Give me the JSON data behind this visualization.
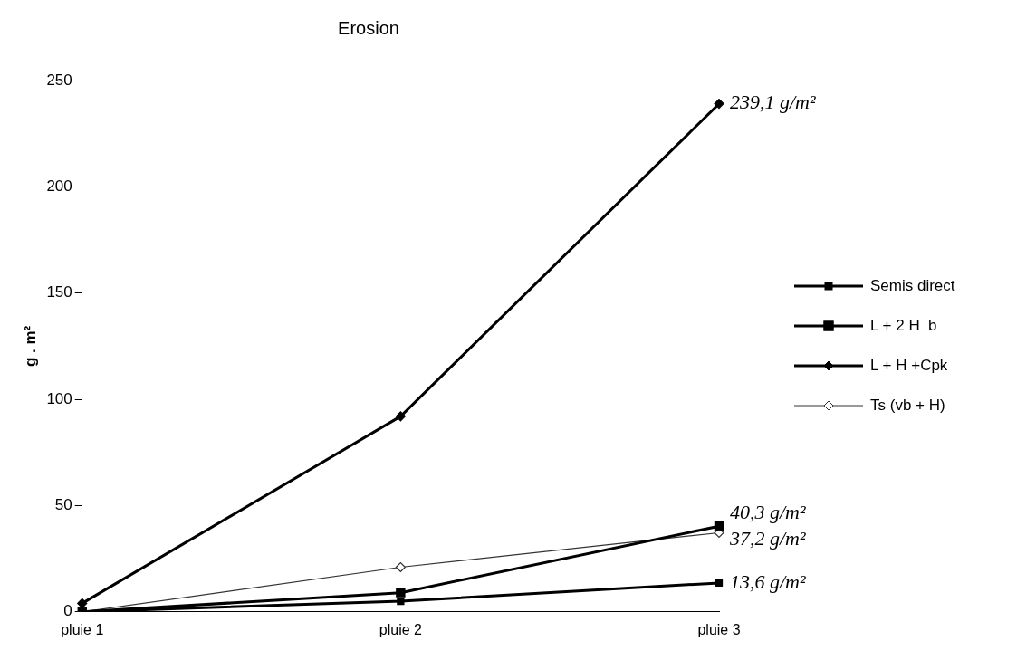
{
  "chart_data": {
    "type": "line",
    "title": "Erosion",
    "ylabel": "g . m²",
    "categories": [
      "pluie 1",
      "pluie 2",
      "pluie 3"
    ],
    "series": [
      {
        "name": "Semis direct",
        "color": "#000000",
        "marker": "square",
        "values": [
          0,
          5,
          13.6
        ]
      },
      {
        "name": "L + 2 H  b",
        "color": "#000000",
        "marker": "square",
        "values": [
          0,
          9,
          40.3
        ]
      },
      {
        "name": "L + H +Cpk",
        "color": "#000000",
        "marker": "diamond",
        "values": [
          4,
          92,
          239.1
        ]
      },
      {
        "name": "Ts (vb + H)",
        "color": "#333333",
        "marker": "diamond",
        "values": [
          0,
          21,
          37.2
        ]
      }
    ],
    "annotations": [
      {
        "text": "239,1 g/m²",
        "x": "pluie 3",
        "y": 239.1
      },
      {
        "text": "40,3 g/m²",
        "x": "pluie 3",
        "y": 40.3
      },
      {
        "text": "37,2 g/m²",
        "x": "pluie 3",
        "y": 37.2
      },
      {
        "text": "13,6 g/m²",
        "x": "pluie 3",
        "y": 13.6
      }
    ],
    "ylim": [
      0,
      250
    ],
    "yticks": [
      0,
      50,
      100,
      150,
      200,
      250
    ],
    "grid": false,
    "legend": "right",
    "line_style": "solid"
  }
}
